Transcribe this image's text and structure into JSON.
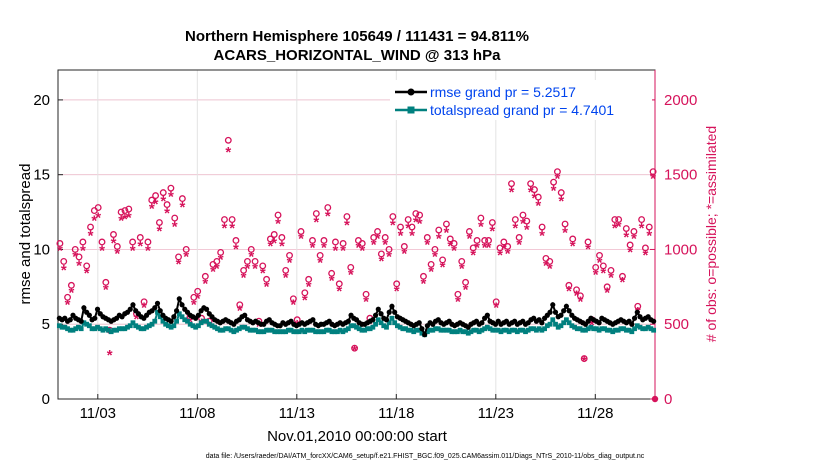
{
  "chart_data": {
    "type": "line",
    "title_line1": "Northern Hemisphere 105649 / 111431 = 94.811%",
    "title_line2": "ACARS_HORIZONTAL_WIND @ 313 hPa",
    "xlabel": "Nov.01,2010 00:00:00 start",
    "ylabel_left": "rmse and totalspread",
    "ylabel_right": "# of obs: o=possible; *=assimilated",
    "footer": "data file: /Users/raeder/DAI/ATM_forcXX/CAM6_setup/f.e21.FHIST_BGC.f09_025.CAM6assim.011/Diags_NTrS_2010-11/obs_diag_output.nc",
    "x_range_days": [
      0.0,
      30.0
    ],
    "xtick_days": [
      2,
      7,
      12,
      17,
      22,
      27
    ],
    "xtick_labels": [
      "11/03",
      "11/08",
      "11/13",
      "11/18",
      "11/23",
      "11/28"
    ],
    "y_left": {
      "lim": [
        0,
        22
      ],
      "ticks": [
        "0",
        "5",
        "10",
        "15",
        "20"
      ],
      "tick_values": [
        0,
        5,
        10,
        15,
        20
      ]
    },
    "y_right": {
      "lim": [
        0,
        2200
      ],
      "ticks": [
        "0",
        "500",
        "1000",
        "1500",
        "2000"
      ],
      "tick_values": [
        0,
        500,
        1000,
        1500,
        2000
      ]
    },
    "colors": {
      "rmse": "#000000",
      "spread": "#00807f",
      "obs": "#d6135b",
      "legend_text": "#0044ee",
      "grid": "#e3e3e3"
    },
    "series": [
      {
        "name": "rmse grand pr = 5.2517",
        "color": "#000000",
        "values": [
          5.4,
          5.3,
          5.4,
          5.2,
          5.3,
          5.6,
          5.4,
          5.3,
          5.2,
          6.1,
          5.8,
          5.6,
          5.3,
          5.4,
          6.0,
          5.7,
          5.5,
          5.4,
          5.3,
          5.2,
          5.3,
          5.4,
          5.6,
          5.5,
          5.7,
          5.8,
          6.0,
          6.3,
          5.9,
          5.7,
          5.5,
          5.4,
          5.6,
          5.8,
          5.9,
          6.1,
          6.4,
          5.9,
          5.6,
          5.4,
          5.3,
          5.2,
          5.5,
          5.9,
          6.7,
          6.3,
          6.0,
          5.8,
          5.6,
          5.5,
          5.4,
          5.6,
          5.9,
          6.1,
          6.0,
          5.7,
          5.5,
          5.3,
          5.2,
          5.1,
          5.2,
          5.3,
          5.2,
          5.1,
          5.0,
          5.2,
          5.3,
          5.5,
          5.6,
          5.3,
          5.2,
          5.1,
          5.2,
          5.1,
          5.0,
          5.0,
          5.2,
          5.3,
          5.1,
          5.0,
          4.9,
          4.9,
          5.1,
          5.0,
          5.1,
          5.2,
          5.0,
          4.9,
          5.0,
          5.1,
          5.0,
          5.1,
          5.2,
          5.3,
          5.0,
          4.9,
          5.0,
          5.0,
          5.1,
          5.2,
          5.0,
          4.9,
          5.0,
          5.1,
          5.0,
          5.1,
          5.2,
          5.6,
          5.4,
          5.3,
          5.1,
          5.0,
          5.0,
          5.1,
          5.2,
          5.3,
          5.6,
          6.0,
          5.7,
          5.4,
          5.3,
          5.8,
          6.2,
          5.8,
          5.5,
          5.4,
          5.3,
          5.2,
          5.1,
          5.0,
          4.9,
          5.0,
          5.1,
          4.7,
          4.3,
          4.9,
          5.1,
          5.0,
          5.2,
          5.3,
          5.1,
          5.0,
          5.1,
          5.2,
          5.0,
          4.9,
          5.0,
          5.1,
          5.0,
          4.9,
          4.8,
          5.0,
          5.1,
          5.2,
          5.0,
          5.1,
          5.4,
          5.6,
          5.2,
          5.1,
          5.0,
          5.2,
          5.0,
          5.1,
          5.2,
          5.0,
          5.1,
          5.2,
          5.0,
          5.1,
          5.2,
          5.0,
          5.1,
          5.3,
          5.4,
          5.2,
          5.3,
          5.1,
          5.4,
          5.6,
          5.8,
          6.3,
          5.8,
          5.5,
          5.6,
          5.9,
          6.2,
          5.9,
          5.6,
          5.4,
          5.3,
          5.2,
          5.1,
          5.0,
          5.2,
          5.4,
          5.3,
          5.2,
          5.1,
          5.4,
          5.3,
          5.2,
          5.1,
          5.0,
          5.1,
          5.2,
          5.3,
          5.2,
          5.1,
          5.2,
          5.0,
          5.4,
          5.8,
          5.5,
          5.3,
          5.4,
          5.5,
          5.3,
          5.2
        ]
      },
      {
        "name": "totalspread grand pr = 4.7401",
        "color": "#00807f",
        "values": [
          4.9,
          4.8,
          4.8,
          4.7,
          4.6,
          4.6,
          4.7,
          4.8,
          4.7,
          5.1,
          5.0,
          4.9,
          4.7,
          4.7,
          4.8,
          4.7,
          4.6,
          4.7,
          4.6,
          4.5,
          4.6,
          4.6,
          4.7,
          4.7,
          4.7,
          4.8,
          4.9,
          5.1,
          4.9,
          4.8,
          4.7,
          4.7,
          4.8,
          4.9,
          5.0,
          5.2,
          5.8,
          5.5,
          5.2,
          5.0,
          4.9,
          4.8,
          4.9,
          5.2,
          5.7,
          5.5,
          5.3,
          5.2,
          5.0,
          4.9,
          4.8,
          4.9,
          5.1,
          5.2,
          5.2,
          5.0,
          4.9,
          4.8,
          4.7,
          4.6,
          4.6,
          4.7,
          4.7,
          4.6,
          4.5,
          4.6,
          4.7,
          4.8,
          4.8,
          4.7,
          4.6,
          4.6,
          4.6,
          4.5,
          4.5,
          4.5,
          4.6,
          4.6,
          4.6,
          4.5,
          4.5,
          4.5,
          4.5,
          4.5,
          4.6,
          4.6,
          4.5,
          4.5,
          4.5,
          4.6,
          4.5,
          4.6,
          4.6,
          4.6,
          4.5,
          4.5,
          4.5,
          4.5,
          4.6,
          4.6,
          4.5,
          4.5,
          4.5,
          4.6,
          4.5,
          4.6,
          4.7,
          4.9,
          4.9,
          4.8,
          4.7,
          4.6,
          4.6,
          4.7,
          4.7,
          4.8,
          5.0,
          5.3,
          5.1,
          4.9,
          4.8,
          5.1,
          5.4,
          5.1,
          4.9,
          4.8,
          4.7,
          4.7,
          4.6,
          4.6,
          4.5,
          4.6,
          4.6,
          4.4,
          4.3,
          4.5,
          4.6,
          4.6,
          4.7,
          4.7,
          4.6,
          4.6,
          4.6,
          4.6,
          4.5,
          4.5,
          4.5,
          4.6,
          4.5,
          4.5,
          4.4,
          4.5,
          4.6,
          4.6,
          4.5,
          4.6,
          4.7,
          4.8,
          4.7,
          4.6,
          4.6,
          4.6,
          4.5,
          4.6,
          4.6,
          4.5,
          4.6,
          4.6,
          4.5,
          4.6,
          4.6,
          4.5,
          4.6,
          4.7,
          4.7,
          4.6,
          4.7,
          4.6,
          4.7,
          4.9,
          5.0,
          5.3,
          5.0,
          4.8,
          4.9,
          5.1,
          5.3,
          5.1,
          4.9,
          4.8,
          4.7,
          4.7,
          4.6,
          4.6,
          4.7,
          4.8,
          4.7,
          4.7,
          4.6,
          4.7,
          4.7,
          4.6,
          4.6,
          4.5,
          4.6,
          4.6,
          4.7,
          4.7,
          4.6,
          4.6,
          4.5,
          4.7,
          4.9,
          4.8,
          4.7,
          4.7,
          4.8,
          4.7,
          4.6
        ]
      },
      {
        "name": "possible",
        "color": "#d6135b",
        "values": [
          1040,
          920,
          680,
          760,
          1000,
          950,
          1050,
          890,
          1150,
          1260,
          1280,
          1050,
          780,
          460,
          1100,
          1020,
          1250,
          1260,
          1270,
          1050,
          570,
          1080,
          650,
          1050,
          1330,
          1360,
          1180,
          1380,
          1300,
          1410,
          1210,
          950,
          1340,
          1000,
          550,
          680,
          720,
          540,
          820,
          520,
          900,
          920,
          980,
          1200,
          1730,
          1200,
          1060,
          630,
          860,
          920,
          1000,
          920,
          520,
          890,
          800,
          1070,
          1100,
          1230,
          1080,
          860,
          960,
          670,
          530,
          1120,
          710,
          800,
          1060,
          1240,
          960,
          1060,
          1280,
          840,
          1050,
          770,
          1040,
          1220,
          880,
          340,
          1060,
          1040,
          700,
          540,
          1080,
          1120,
          970,
          1080,
          1000,
          1220,
          770,
          1150,
          1020,
          1200,
          1150,
          1240,
          1230,
          820,
          1080,
          900,
          1000,
          1130,
          930,
          1170,
          1070,
          1040,
          700,
          920,
          780,
          1120,
          1010,
          1060,
          1210,
          1060,
          1060,
          1180,
          650,
          1010,
          1050,
          1020,
          1440,
          1200,
          1080,
          1230,
          1190,
          1440,
          1400,
          1350,
          1150,
          940,
          920,
          1450,
          1520,
          1380,
          1170,
          760,
          1070,
          730,
          690,
          270,
          1050,
          530,
          880,
          960,
          890,
          750,
          860,
          1200,
          1200,
          820,
          1140,
          1030,
          1120,
          620,
          1200,
          1010,
          1150,
          1520
        ]
      },
      {
        "name": "assimilated",
        "color": "#d6135b",
        "values": [
          1000,
          870,
          640,
          720,
          960,
          900,
          1000,
          850,
          1100,
          1200,
          1220,
          1000,
          740,
          300,
          1050,
          980,
          1200,
          1210,
          1220,
          1000,
          540,
          1030,
          620,
          1000,
          1280,
          1310,
          1130,
          1330,
          1250,
          1360,
          1160,
          910,
          1290,
          960,
          520,
          640,
          680,
          510,
          780,
          490,
          860,
          880,
          940,
          1150,
          1660,
          1150,
          1010,
          600,
          820,
          880,
          960,
          880,
          490,
          850,
          760,
          1030,
          1050,
          1180,
          1030,
          820,
          920,
          640,
          500,
          1080,
          670,
          760,
          1020,
          1190,
          920,
          1020,
          1230,
          800,
          1000,
          730,
          1000,
          1170,
          840,
          330,
          1020,
          1000,
          660,
          510,
          1040,
          1080,
          930,
          1040,
          960,
          1170,
          730,
          1100,
          980,
          1150,
          1100,
          1190,
          1180,
          780,
          1040,
          860,
          960,
          1080,
          890,
          1120,
          1030,
          1000,
          660,
          880,
          740,
          1080,
          970,
          1020,
          1160,
          1020,
          1020,
          1130,
          620,
          970,
          1010,
          980,
          1390,
          1150,
          1040,
          1180,
          1140,
          1390,
          1350,
          1300,
          1100,
          900,
          880,
          1400,
          1480,
          1330,
          1120,
          730,
          1030,
          700,
          660,
          260,
          1010,
          500,
          840,
          920,
          850,
          720,
          820,
          1150,
          1160,
          790,
          1090,
          990,
          1080,
          590,
          1150,
          970,
          1100,
          1480
        ]
      }
    ]
  }
}
